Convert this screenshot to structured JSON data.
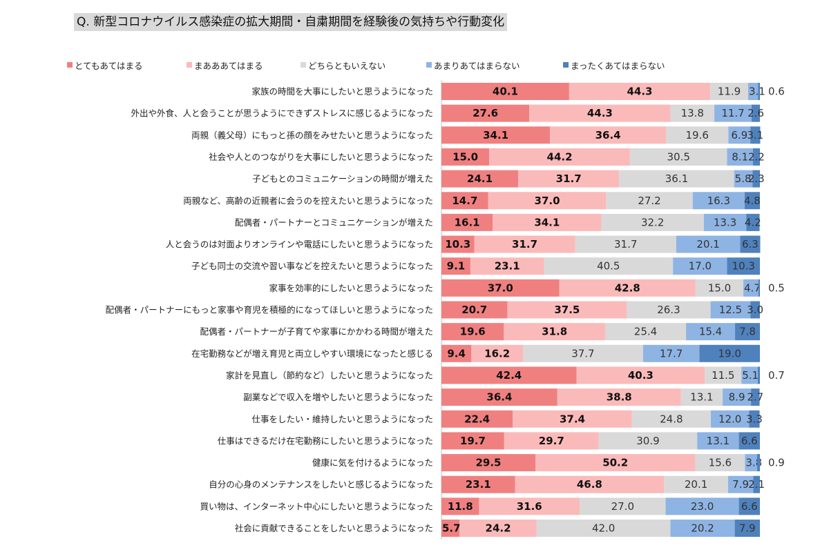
{
  "title": "Q. 新型コロナウイルス感染症の拡大期間・自粛期間を経験後の気持ちや行動変化",
  "chart_data": {
    "type": "bar",
    "orientation": "horizontal",
    "stacked": true,
    "percent_stacked": true,
    "xlim": [
      0,
      100
    ],
    "grid": false,
    "legend_position": "top",
    "title": "Q. 新型コロナウイルス感染症の拡大期間・自粛期間を経験後の気持ちや行動変化",
    "categories": [
      "家族の時間を大事にしたいと思うようになった",
      "外出や外食、人と会うことが思うようにできずストレスに感じるようになった",
      "両親（義父母）にもっと孫の顔をみせたいと思うようになった",
      "社会や人とのつながりを大事にしたいと思うようになった",
      "子どもとのコミュニケーションの時間が増えた",
      "両親など、高齢の近親者に会うのを控えたいと思うようになった",
      "配偶者・パートナーとコミュニケーションが増えた",
      "人と会うのは対面よりオンラインや電話にしたいと思うようになった",
      "子ども同士の交流や習い事などを控えたいと思うようになった",
      "家事を効率的にしたいと思うようになった",
      "配偶者・パートナーにもっと家事や育児を積極的になってほしいと思うようになった",
      "配偶者・パートナーが子育てや家事にかかわる時間が増えた",
      "在宅勤務などが増え育児と両立しやすい環境になったと感じる",
      "家計を見直し（節約など）したいと思うようになった",
      "副業などで収入を増やしたいと思うようになった",
      "仕事をしたい・維持したいと思うようになった",
      "仕事はできるだけ在宅勤務にしたいと思うようになった",
      "健康に気を付けるようになった",
      "自分の心身のメンテナンスをしたいと感じるようになった",
      "買い物は、インターネット中心にしたいと思うようになった",
      "社会に貢献できることをしたいと思うようになった"
    ],
    "series": [
      {
        "name": "とてもあてはまる",
        "color": "#f08080",
        "values": [
          40.1,
          27.6,
          34.1,
          15.0,
          24.1,
          14.7,
          16.1,
          10.3,
          9.1,
          37.0,
          20.7,
          19.6,
          9.4,
          42.4,
          36.4,
          22.4,
          19.7,
          29.5,
          23.1,
          11.8,
          5.7
        ],
        "labels": [
          "40.1",
          "27.6",
          "34.1",
          "15.0",
          "24.1",
          "14.7",
          "16.1",
          "10.3",
          "9.1",
          "37.0",
          "20.7",
          "19.6",
          "9.4",
          "42.4",
          "36.4",
          "22.4",
          "19.7",
          "29.5",
          "23.1",
          "11.8",
          "5.7"
        ]
      },
      {
        "name": "まあああてはまる",
        "color": "#fbbaba",
        "values": [
          44.3,
          44.3,
          36.4,
          44.2,
          31.7,
          37.0,
          34.1,
          31.7,
          23.1,
          42.8,
          37.5,
          31.8,
          16.2,
          40.3,
          38.8,
          37.4,
          29.7,
          50.2,
          46.8,
          31.6,
          24.2
        ],
        "labels": [
          "44.3",
          "44.3",
          "36.4",
          "44.2",
          "31.7",
          "37.0",
          "34.1",
          "31.7",
          "23.1",
          "42.8",
          "37.5",
          "31.8",
          "16.2",
          "40.3",
          "38.8",
          "37.4",
          "29.7",
          "50.2",
          "46.8",
          "31.6",
          "24.2"
        ]
      },
      {
        "name": "どちらともいえない",
        "color": "#d9d9d9",
        "values": [
          11.9,
          13.8,
          19.6,
          30.5,
          36.1,
          27.2,
          32.2,
          31.7,
          40.5,
          15.0,
          26.3,
          25.4,
          37.7,
          11.5,
          13.1,
          24.8,
          30.9,
          15.6,
          20.1,
          27.0,
          42.0
        ],
        "labels": [
          "11.9",
          "13.8",
          "19.6",
          "30.5",
          "36.1",
          "27.2",
          "32.2",
          "31.7",
          "40.5",
          "15.0",
          "26.3",
          "25.4",
          "37.7",
          "11.5",
          "13.1",
          "24.8",
          "30.9",
          "15.6",
          "20.1",
          "27.0",
          "42.0"
        ]
      },
      {
        "name": "あまりあてはまらない",
        "color": "#8eb4e3",
        "values": [
          3.1,
          11.7,
          6.9,
          8.1,
          5.8,
          16.3,
          13.3,
          20.1,
          17.0,
          4.7,
          12.5,
          15.4,
          17.7,
          5.1,
          8.9,
          12.0,
          13.1,
          3.8,
          7.9,
          23.0,
          20.2
        ],
        "labels": [
          "3.1",
          "11.7",
          "6.9",
          "8.1",
          "5.8",
          "16.3",
          "13.3",
          "20.1",
          "17.0",
          "4.7",
          "12.5",
          "15.4",
          "17.7",
          "5.1",
          "8.9",
          "12.0",
          "13.1",
          "3.8",
          "7.9",
          "23.0",
          "20.2"
        ]
      },
      {
        "name": "まったくあてはまらない",
        "color": "#4f81bd",
        "values": [
          0.6,
          2.6,
          3.1,
          2.2,
          2.3,
          4.8,
          4.2,
          6.3,
          10.3,
          0.5,
          3.0,
          7.8,
          19.0,
          0.7,
          2.7,
          3.3,
          6.6,
          0.9,
          2.1,
          6.6,
          7.9
        ],
        "labels": [
          "0.6",
          "2.6",
          "3.1",
          "2.2",
          "2.3",
          "4.8",
          "4.2",
          "6.3",
          "10.3",
          "0.5",
          "3.0",
          "7.8",
          "19.0",
          "0.7",
          "2.7",
          "3.3",
          "6.6",
          "0.9",
          "2.1",
          "6.6",
          "7.9"
        ]
      }
    ]
  }
}
